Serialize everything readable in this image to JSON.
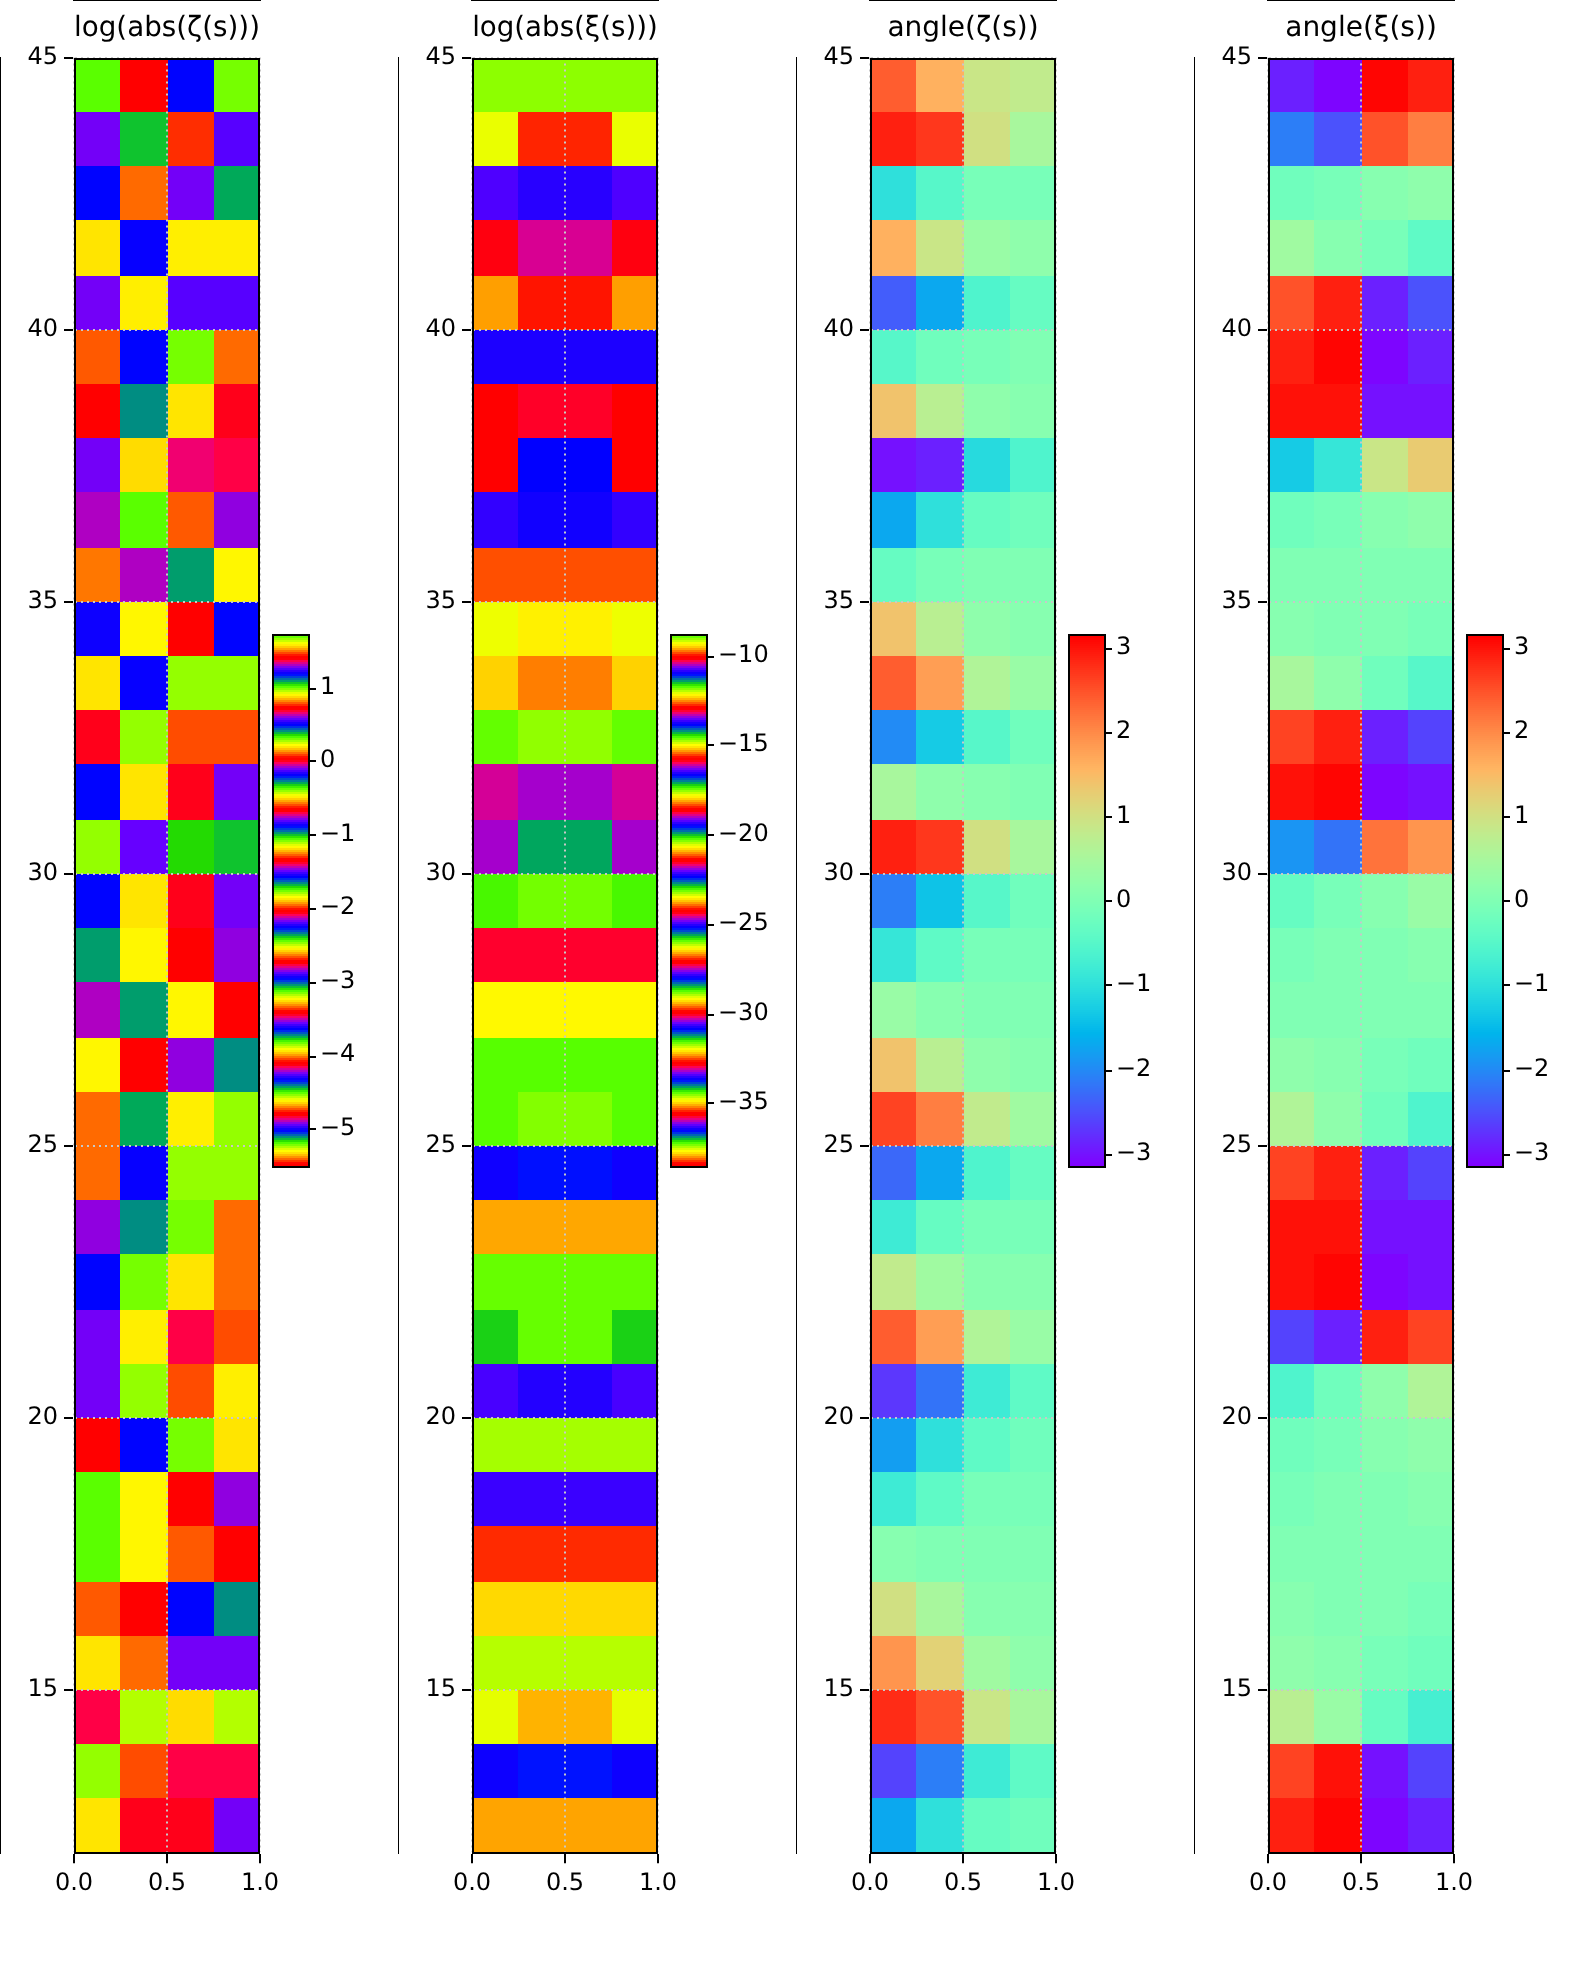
{
  "chart_data": [
    {
      "type": "heatmap",
      "title": "log(abs(ζ(s)))",
      "cells": [
        [
          1.0,
          0.7,
          0.5,
          0.3
        ],
        [
          -0.1,
          -1.0,
          -1.3,
          -0.8
        ],
        [
          0.5,
          0.1,
          -0.1,
          -0.3
        ],
        [
          0.2,
          -0.2,
          -0.5,
          -0.5
        ],
        [
          -0.1,
          -0.5,
          -0.8,
          -0.8
        ],
        [
          0.8,
          0.5,
          0.3,
          0.1
        ],
        [
          0.7,
          0.4,
          0.2,
          0.0
        ],
        [
          -0.1,
          -1.2,
          -1.4,
          -0.7
        ],
        [
          1.3,
          1.0,
          0.8,
          0.6
        ],
        [
          1.5,
          1.3,
          1.1,
          0.9
        ],
        [
          1.2,
          0.9,
          0.7,
          0.5
        ],
        [
          0.2,
          -0.2,
          -0.4,
          -0.4
        ],
        [
          0.0,
          -0.4,
          -0.6,
          -0.6
        ],
        [
          0.5,
          0.2,
          0.0,
          -0.1
        ],
        [
          -0.4,
          -1.5,
          -1.7,
          -1.0
        ],
        [
          0.5,
          0.2,
          0.0,
          -0.1
        ],
        [
          1.1,
          0.9,
          0.7,
          0.6
        ],
        [
          1.3,
          1.1,
          0.9,
          0.7
        ],
        [
          0.9,
          0.7,
          0.6,
          0.4
        ],
        [
          0.1,
          -0.3,
          -0.5,
          -0.4
        ],
        [
          0.1,
          -0.2,
          -0.4,
          -0.4
        ],
        [
          0.6,
          0.4,
          0.3,
          0.1
        ],
        [
          0.5,
          0.3,
          0.2,
          0.1
        ],
        [
          -0.1,
          -0.5,
          -0.7,
          -0.6
        ],
        [
          -0.1,
          -0.4,
          -0.6,
          -0.5
        ],
        [
          0.7,
          0.5,
          0.3,
          0.2
        ],
        [
          1.0,
          0.9,
          0.7,
          0.6
        ],
        [
          1.0,
          0.9,
          0.8,
          0.7
        ],
        [
          0.8,
          0.7,
          0.5,
          0.4
        ],
        [
          0.2,
          0.1,
          -0.1,
          -0.1
        ],
        [
          -0.7,
          -1.1,
          -1.2,
          -1.1
        ],
        [
          -0.4,
          -0.6,
          -0.7,
          -0.7
        ],
        [
          0.2,
          0.0,
          0.0,
          -0.1
        ]
      ],
      "clim": [
        -5.5,
        1.7
      ],
      "cticks": [
        {
          "value": -5,
          "label": "−5"
        },
        {
          "value": -4,
          "label": "−4"
        },
        {
          "value": -3,
          "label": "−3"
        },
        {
          "value": -2,
          "label": "−2"
        },
        {
          "value": -1,
          "label": "−1"
        },
        0,
        1
      ],
      "xlim": [
        0,
        1
      ],
      "xticks": [
        {
          "value": 0,
          "label": "0.0"
        },
        {
          "value": 0.5,
          "label": "0.5"
        },
        {
          "value": 1,
          "label": "1.0"
        }
      ],
      "ylim": [
        12,
        45
      ],
      "yticks": [
        15,
        20,
        25,
        30,
        35,
        40,
        45
      ],
      "grid": true
    },
    {
      "type": "heatmap",
      "title": "log(abs(ξ(s)))",
      "cells": [
        [
          -34.5,
          -34.5,
          -34.5,
          -34.5
        ],
        [
          -34.8,
          -35.4,
          -35.4,
          -34.8
        ],
        [
          -33.4,
          -33.5,
          -33.5,
          -33.4
        ],
        [
          -32.9,
          -33.1,
          -33.1,
          -32.9
        ],
        [
          -32.3,
          -32.6,
          -32.6,
          -32.3
        ],
        [
          -30.7,
          -30.7,
          -30.7,
          -30.7
        ],
        [
          -30.0,
          -30.1,
          -30.1,
          -30.0
        ],
        [
          -30.0,
          -30.9,
          -30.9,
          -30.0
        ],
        [
          -27.8,
          -27.9,
          -27.9,
          -27.8
        ],
        [
          -26.8,
          -26.8,
          -26.8,
          -26.8
        ],
        [
          -26.3,
          -26.4,
          -26.4,
          -26.3
        ],
        [
          -26.5,
          -26.7,
          -26.7,
          -26.5
        ],
        [
          -25.9,
          -26.1,
          -26.1,
          -25.9
        ],
        [
          -24.6,
          -24.7,
          -24.7,
          -24.6
        ],
        [
          -24.7,
          -25.6,
          -25.6,
          -24.7
        ],
        [
          -23.0,
          -23.1,
          -23.1,
          -23.0
        ],
        [
          -21.6,
          -21.6,
          -21.6,
          -21.6
        ],
        [
          -20.7,
          -20.7,
          -20.7,
          -20.7
        ],
        [
          -20.2,
          -20.2,
          -20.2,
          -20.2
        ],
        [
          -20.2,
          -20.4,
          -20.4,
          -20.2
        ],
        [
          -19.4,
          -19.6,
          -19.6,
          -19.4
        ],
        [
          -18.1,
          -18.1,
          -18.1,
          -18.1
        ],
        [
          -17.4,
          -17.4,
          -17.4,
          -17.4
        ],
        [
          -17.2,
          -17.4,
          -17.4,
          -17.2
        ],
        [
          -16.4,
          -16.6,
          -16.6,
          -16.4
        ],
        [
          -14.8,
          -14.8,
          -14.8,
          -14.8
        ],
        [
          -13.7,
          -13.7,
          -13.7,
          -13.7
        ],
        [
          -12.8,
          -12.8,
          -12.8,
          -12.8
        ],
        [
          -12.3,
          -12.3,
          -12.3,
          -12.3
        ],
        [
          -12.0,
          -12.0,
          -12.0,
          -12.0
        ],
        [
          -12.1,
          -12.4,
          -12.4,
          -12.1
        ],
        [
          -11.0,
          -11.1,
          -11.1,
          -11.0
        ],
        [
          -9.6,
          -9.6,
          -9.6,
          -9.6
        ]
      ],
      "clim": [
        -38.5,
        -8.9
      ],
      "cticks": [
        {
          "value": -35,
          "label": "−35"
        },
        {
          "value": -30,
          "label": "−30"
        },
        {
          "value": -25,
          "label": "−25"
        },
        {
          "value": -20,
          "label": "−20"
        },
        {
          "value": -15,
          "label": "−15"
        },
        {
          "value": -10,
          "label": "−10"
        }
      ],
      "xlim": [
        0,
        1
      ],
      "xticks": [
        {
          "value": 0,
          "label": "0.0"
        },
        {
          "value": 0.5,
          "label": "0.5"
        },
        {
          "value": 1,
          "label": "1.0"
        }
      ],
      "ylim": [
        12,
        45
      ],
      "yticks": [
        15,
        20,
        25,
        30,
        35,
        40,
        45
      ],
      "grid": true
    },
    {
      "type": "heatmap",
      "title": "angle(ζ(s))",
      "cells": [
        [
          2.4,
          1.6,
          0.9,
          0.8
        ],
        [
          2.9,
          2.7,
          1.0,
          0.5
        ],
        [
          -1.0,
          -0.5,
          -0.1,
          -0.1
        ],
        [
          1.6,
          0.9,
          0.3,
          0.2
        ],
        [
          -2.4,
          -1.7,
          -0.6,
          -0.3
        ],
        [
          -0.5,
          -0.2,
          -0.1,
          0.0
        ],
        [
          1.4,
          0.7,
          0.2,
          0.1
        ],
        [
          -3.0,
          -2.9,
          -1.1,
          -0.6
        ],
        [
          -1.7,
          -1.0,
          -0.3,
          -0.2
        ],
        [
          -0.3,
          -0.1,
          0.0,
          0.0
        ],
        [
          1.4,
          0.7,
          0.2,
          0.1
        ],
        [
          2.4,
          1.8,
          0.6,
          0.3
        ],
        [
          -2.0,
          -1.3,
          -0.5,
          -0.2
        ],
        [
          0.5,
          0.2,
          0.1,
          0.0
        ],
        [
          2.9,
          2.7,
          1.0,
          0.5
        ],
        [
          -2.1,
          -1.4,
          -0.5,
          -0.2
        ],
        [
          -0.9,
          -0.4,
          -0.1,
          -0.1
        ],
        [
          0.3,
          0.1,
          0.0,
          0.0
        ],
        [
          1.4,
          0.7,
          0.2,
          0.1
        ],
        [
          2.6,
          2.1,
          0.8,
          0.4
        ],
        [
          -2.3,
          -1.7,
          -0.6,
          -0.3
        ],
        [
          -0.8,
          -0.3,
          -0.1,
          -0.1
        ],
        [
          0.8,
          0.4,
          0.1,
          0.1
        ],
        [
          2.4,
          1.8,
          0.6,
          0.3
        ],
        [
          -2.7,
          -2.2,
          -0.8,
          -0.4
        ],
        [
          -1.8,
          -1.0,
          -0.4,
          -0.2
        ],
        [
          -0.8,
          -0.4,
          -0.1,
          -0.1
        ],
        [
          0.1,
          0.0,
          0.0,
          0.0
        ],
        [
          1.0,
          0.5,
          0.1,
          0.1
        ],
        [
          1.9,
          1.2,
          0.4,
          0.2
        ],
        [
          2.8,
          2.5,
          0.9,
          0.5
        ],
        [
          -2.6,
          -2.1,
          -0.8,
          -0.4
        ],
        [
          -1.7,
          -1.0,
          -0.3,
          -0.2
        ]
      ],
      "clim": [
        -3.14,
        3.14
      ],
      "cticks": [
        {
          "value": -3,
          "label": "−3"
        },
        {
          "value": -2,
          "label": "−2"
        },
        {
          "value": -1,
          "label": "−1"
        },
        0,
        1,
        2,
        3
      ],
      "xlim": [
        0,
        1
      ],
      "xticks": [
        {
          "value": 0,
          "label": "0.0"
        },
        {
          "value": 0.5,
          "label": "0.5"
        },
        {
          "value": 1,
          "label": "1.0"
        }
      ],
      "ylim": [
        12,
        45
      ],
      "yticks": [
        15,
        20,
        25,
        30,
        35,
        40,
        45
      ],
      "grid": true
    },
    {
      "type": "heatmap",
      "title": "angle(ξ(s))",
      "cells": [
        [
          -2.9,
          -3.1,
          3.1,
          2.9
        ],
        [
          -2.1,
          -2.5,
          2.5,
          2.1
        ],
        [
          -0.2,
          -0.1,
          0.1,
          0.2
        ],
        [
          0.4,
          0.1,
          -0.1,
          -0.4
        ],
        [
          2.5,
          2.9,
          -2.9,
          -2.5
        ],
        [
          2.9,
          3.1,
          -3.1,
          -2.9
        ],
        [
          3.0,
          3.0,
          -3.0,
          -3.0
        ],
        [
          -1.3,
          -0.9,
          0.9,
          1.3
        ],
        [
          -0.2,
          -0.1,
          0.1,
          0.2
        ],
        [
          0.0,
          0.0,
          0.0,
          0.0
        ],
        [
          0.1,
          0.0,
          0.0,
          -0.1
        ],
        [
          0.5,
          0.2,
          -0.2,
          -0.5
        ],
        [
          2.6,
          2.9,
          -2.9,
          -2.6
        ],
        [
          3.0,
          3.1,
          -3.1,
          -3.0
        ],
        [
          -1.9,
          -2.2,
          2.2,
          1.9
        ],
        [
          -0.3,
          -0.1,
          0.1,
          0.3
        ],
        [
          -0.1,
          0.0,
          0.0,
          0.1
        ],
        [
          0.0,
          0.0,
          0.0,
          0.0
        ],
        [
          0.2,
          0.1,
          -0.1,
          -0.2
        ],
        [
          0.6,
          0.2,
          -0.2,
          -0.6
        ],
        [
          2.6,
          2.9,
          -2.9,
          -2.6
        ],
        [
          3.0,
          3.0,
          -3.0,
          -3.0
        ],
        [
          3.0,
          3.1,
          -3.1,
          -3.0
        ],
        [
          -2.6,
          -2.9,
          2.9,
          2.6
        ],
        [
          -0.6,
          -0.2,
          0.2,
          0.6
        ],
        [
          -0.2,
          -0.1,
          0.1,
          0.2
        ],
        [
          -0.1,
          0.0,
          0.0,
          0.1
        ],
        [
          0.0,
          0.0,
          0.0,
          0.0
        ],
        [
          0.1,
          0.0,
          0.0,
          -0.1
        ],
        [
          0.2,
          0.1,
          -0.1,
          -0.2
        ],
        [
          0.7,
          0.3,
          -0.3,
          -0.7
        ],
        [
          2.6,
          3.0,
          -3.0,
          -2.6
        ],
        [
          2.9,
          3.1,
          -3.1,
          -2.9
        ]
      ],
      "clim": [
        -3.14,
        3.14
      ],
      "cticks": [
        {
          "value": -3,
          "label": "−3"
        },
        {
          "value": -2,
          "label": "−2"
        },
        {
          "value": -1,
          "label": "−1"
        },
        0,
        1,
        2,
        3
      ],
      "xlim": [
        0,
        1
      ],
      "xticks": [
        {
          "value": 0,
          "label": "0.0"
        },
        {
          "value": 0.5,
          "label": "0.5"
        },
        {
          "value": 1,
          "label": "1.0"
        }
      ],
      "ylim": [
        12,
        45
      ],
      "yticks": [
        15,
        20,
        25,
        30,
        35,
        40,
        45
      ],
      "grid": true
    }
  ]
}
